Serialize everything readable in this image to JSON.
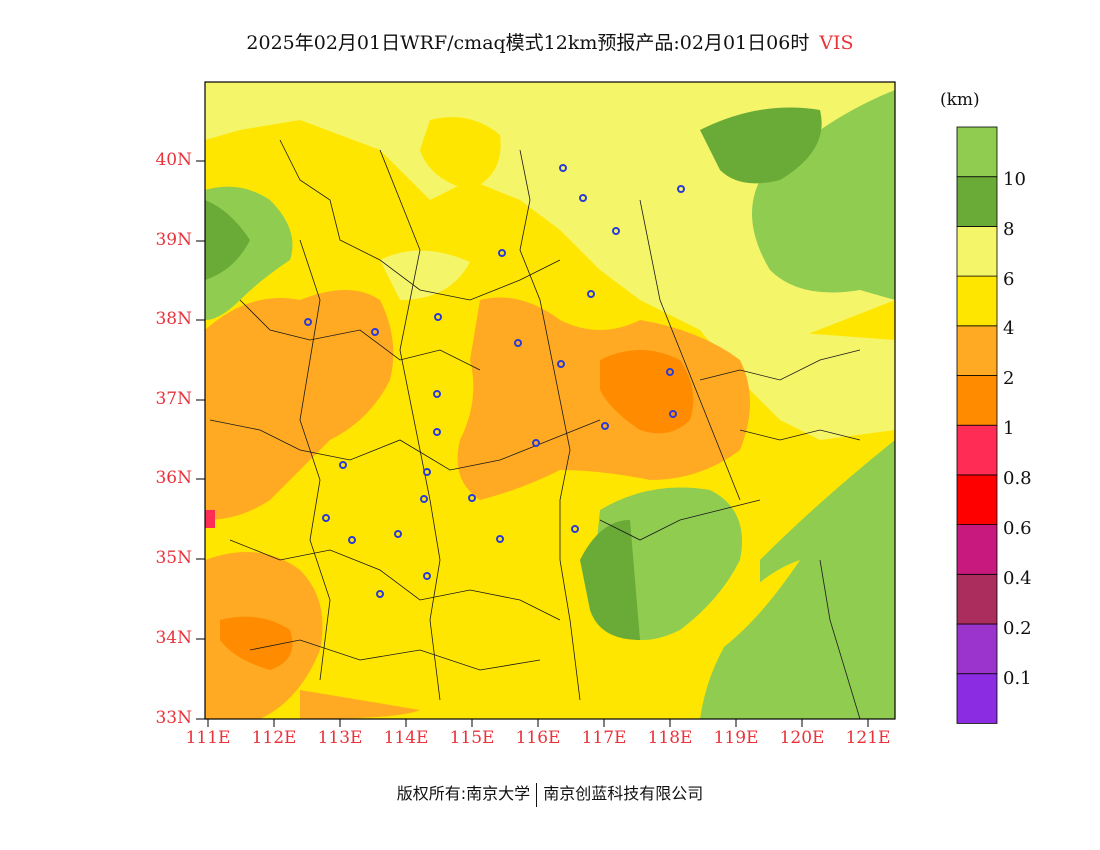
{
  "title": {
    "main": "2025年02月01日WRF/cmaq模式12km预报产品:02月01日06时",
    "variable": "VIS"
  },
  "colorbar": {
    "unit": "(km)",
    "colors": [
      "#8b2be2",
      "#9a34cc",
      "#aa2d5e",
      "#c8197f",
      "#ff0000",
      "#ff2d55",
      "#ff8c00",
      "#ffaa22",
      "#ffe600",
      "#f5f56a",
      "#6aaa36",
      "#8fcc50"
    ],
    "labels": [
      "0.1",
      "0.2",
      "0.4",
      "0.6",
      "0.8",
      "1",
      "2",
      "4",
      "6",
      "8",
      "10"
    ]
  },
  "axes": {
    "lat_labels": [
      "33N",
      "34N",
      "35N",
      "36N",
      "37N",
      "38N",
      "39N",
      "40N"
    ],
    "lon_labels": [
      "111E",
      "112E",
      "113E",
      "114E",
      "115E",
      "116E",
      "117E",
      "118E",
      "119E",
      "120E",
      "121E"
    ]
  },
  "footer": {
    "left": "版权所有:南京大学",
    "right": "南京创蓝科技有限公司"
  }
}
